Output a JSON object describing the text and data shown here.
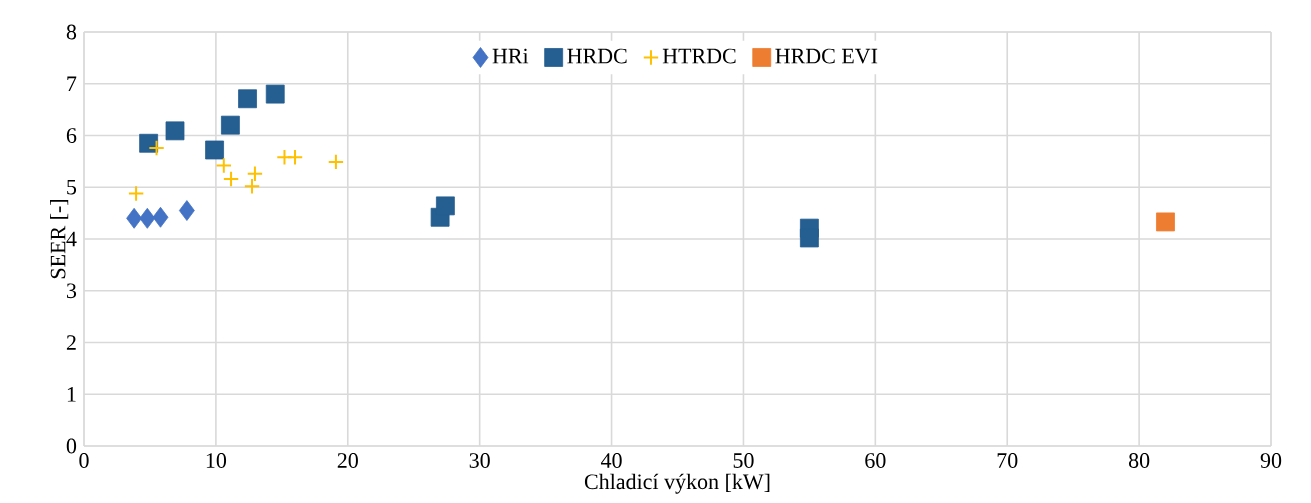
{
  "chart_data": {
    "type": "scatter",
    "xlabel": "Chladicí výkon [kW]",
    "ylabel": "SEER [-]",
    "xlim": [
      0,
      90
    ],
    "xticks": [
      0,
      10,
      20,
      30,
      40,
      50,
      60,
      70,
      80,
      90
    ],
    "ylim": [
      0,
      8
    ],
    "yticks": [
      0,
      1,
      2,
      3,
      4,
      5,
      6,
      7,
      8
    ],
    "grid": true,
    "legend": "top",
    "series": [
      {
        "name": "HRi",
        "color": "#4472c4",
        "marker": "diamond",
        "x": [
          3.8,
          4.8,
          5.8,
          7.8
        ],
        "values": [
          4.4,
          4.4,
          4.42,
          4.55
        ]
      },
      {
        "name": "HRDC",
        "color": "#255e91",
        "marker": "square",
        "x": [
          4.9,
          6.9,
          9.9,
          11.1,
          12.4,
          14.5,
          27.0,
          27.4,
          55.0,
          55.0
        ],
        "values": [
          5.85,
          6.09,
          5.72,
          6.2,
          6.71,
          6.8,
          4.42,
          4.64,
          4.21,
          4.02
        ]
      },
      {
        "name": "HTRDC",
        "color": "#ffc000",
        "marker": "cross",
        "x": [
          5.5,
          3.95,
          10.6,
          11.15,
          12.96,
          12.74,
          15.2,
          16.0,
          19.1
        ],
        "values": [
          5.76,
          4.88,
          5.42,
          5.16,
          5.26,
          5.02,
          5.58,
          5.58,
          5.49
        ]
      },
      {
        "name": "HRDC EVI",
        "color": "#ed7d31",
        "marker": "square",
        "x": [
          82.0
        ],
        "values": [
          4.33
        ]
      }
    ]
  }
}
